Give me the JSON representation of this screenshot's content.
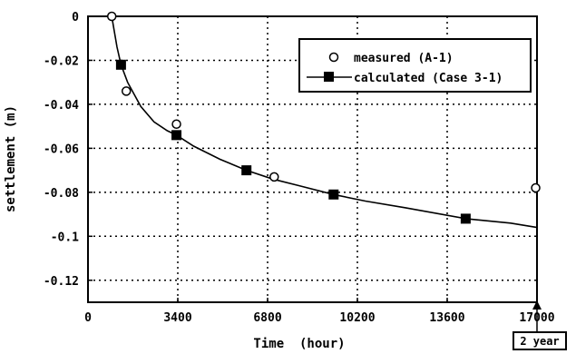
{
  "chart_data": {
    "type": "scatter",
    "xlabel": "Time  (hour)",
    "ylabel": "settlement (m)",
    "xlim": [
      0,
      17000
    ],
    "ylim": [
      -0.13,
      0
    ],
    "x_ticks": [
      0,
      3400,
      6800,
      10200,
      13600,
      17000
    ],
    "x_tick_labels": [
      "0",
      "3400",
      "6800",
      "10200",
      "13600",
      "17000"
    ],
    "y_ticks": [
      0,
      -0.02,
      -0.04,
      -0.06,
      -0.08,
      -0.1,
      -0.12
    ],
    "y_tick_labels": [
      "0",
      "-0.02",
      "-0.04",
      "-0.06",
      "-0.08",
      "-0.1",
      "-0.12"
    ],
    "grid": true,
    "legend_position": "top-right",
    "series": [
      {
        "name": "measured (A-1)",
        "marker": "open-circle",
        "x": [
          900,
          1450,
          3350,
          7050,
          16950
        ],
        "y": [
          0.0,
          -0.034,
          -0.049,
          -0.073,
          -0.078
        ]
      },
      {
        "name": "calculated (Case 3-1)",
        "marker": "filled-square",
        "x": [
          1250,
          3350,
          6000,
          9300,
          14300
        ],
        "y": [
          -0.022,
          -0.054,
          -0.07,
          -0.081,
          -0.092
        ]
      }
    ],
    "fitted_curve": {
      "x": [
        900,
        1000,
        1100,
        1250,
        1500,
        2000,
        2500,
        3000,
        3350,
        4000,
        5000,
        6000,
        7000,
        8000,
        9300,
        10500,
        12000,
        14300,
        16000,
        17000
      ],
      "y": [
        0.0,
        -0.007,
        -0.014,
        -0.022,
        -0.03,
        -0.041,
        -0.048,
        -0.052,
        -0.054,
        -0.059,
        -0.065,
        -0.07,
        -0.074,
        -0.077,
        -0.081,
        -0.084,
        -0.087,
        -0.092,
        -0.094,
        -0.096
      ]
    },
    "annotation": {
      "text": "2 year",
      "x": 17000
    }
  }
}
